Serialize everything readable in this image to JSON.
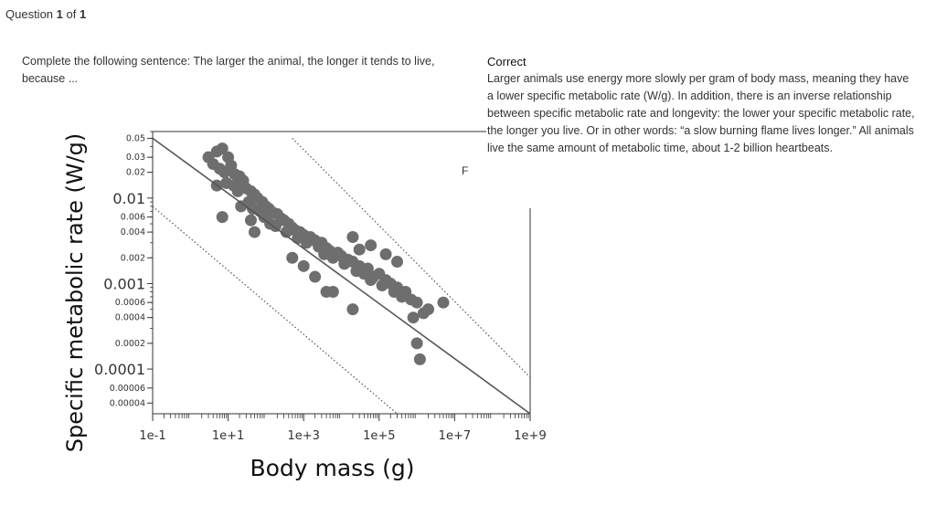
{
  "header": {
    "prefix": "Question",
    "current": "1",
    "sep": "of",
    "total": "1"
  },
  "question": {
    "prompt": "Complete the following sentence: The larger the animal, the longer it tends to live, because ..."
  },
  "feedback": {
    "status": "Correct",
    "text": "Larger animals use energy more slowly per gram of body mass, meaning they have a lower specific metabolic rate (W/g). In addition, there is an inverse relationship between specific metabolic rate and longevity: the lower your specific metabolic rate, the longer you live. Or in other words: “a slow burning flame lives longer.” All animals live the same amount of metabolic time, about 1-2 billion heartbeats."
  },
  "stray": "F",
  "chart_data": {
    "type": "scatter",
    "title": "",
    "xlabel": "Body mass (g)",
    "ylabel": "Specific metabolic rate (W/g)",
    "x_scale": "log",
    "y_scale": "log",
    "xlim": [
      0.1,
      1000000000
    ],
    "ylim": [
      3e-05,
      0.06
    ],
    "x_ticks": [
      {
        "value": 0.1,
        "label": "1e-1"
      },
      {
        "value": 10,
        "label": "1e+1"
      },
      {
        "value": 1000,
        "label": "1e+3"
      },
      {
        "value": 100000,
        "label": "1e+5"
      },
      {
        "value": 10000000,
        "label": "1e+7"
      },
      {
        "value": 1000000000,
        "label": "1e+9"
      }
    ],
    "y_ticks": [
      {
        "value": 0.05,
        "label": "0.05",
        "major": false
      },
      {
        "value": 0.03,
        "label": "0.03",
        "major": false
      },
      {
        "value": 0.02,
        "label": "0.02",
        "major": false
      },
      {
        "value": 0.01,
        "label": "0.01",
        "major": true
      },
      {
        "value": 0.006,
        "label": "0.006",
        "major": false
      },
      {
        "value": 0.004,
        "label": "0.004",
        "major": false
      },
      {
        "value": 0.002,
        "label": "0.002",
        "major": false
      },
      {
        "value": 0.001,
        "label": "0.001",
        "major": true
      },
      {
        "value": 0.0006,
        "label": "0.0006",
        "major": false
      },
      {
        "value": 0.0004,
        "label": "0.0004",
        "major": false
      },
      {
        "value": 0.0002,
        "label": "0.0002",
        "major": false
      },
      {
        "value": 0.0001,
        "label": "0.0001",
        "major": true
      },
      {
        "value": 6e-05,
        "label": "0.00006",
        "major": false
      },
      {
        "value": 4e-05,
        "label": "0.00004",
        "major": false
      }
    ],
    "trend_line": {
      "x": [
        0.1,
        1000000000
      ],
      "y": [
        0.05,
        3e-05
      ]
    },
    "upper_bound": {
      "x": [
        500,
        1000000000
      ],
      "y": [
        0.05,
        8e-05
      ]
    },
    "lower_bound": {
      "x": [
        0.1,
        300000
      ],
      "y": [
        0.008,
        3e-05
      ]
    },
    "point_color": "#6e6e6e",
    "line_color": "#555555",
    "points": [
      [
        3,
        0.03
      ],
      [
        5,
        0.035
      ],
      [
        7,
        0.038
      ],
      [
        10,
        0.03
      ],
      [
        4,
        0.025
      ],
      [
        6,
        0.022
      ],
      [
        8,
        0.02
      ],
      [
        12,
        0.024
      ],
      [
        15,
        0.019
      ],
      [
        20,
        0.018
      ],
      [
        9,
        0.015
      ],
      [
        14,
        0.014
      ],
      [
        25,
        0.016
      ],
      [
        30,
        0.013
      ],
      [
        18,
        0.012
      ],
      [
        40,
        0.012
      ],
      [
        50,
        0.011
      ],
      [
        60,
        0.01
      ],
      [
        35,
        0.009
      ],
      [
        80,
        0.009
      ],
      [
        22,
        0.008
      ],
      [
        45,
        0.0075
      ],
      [
        100,
        0.008
      ],
      [
        120,
        0.0075
      ],
      [
        70,
        0.007
      ],
      [
        150,
        0.0068
      ],
      [
        200,
        0.0065
      ],
      [
        90,
        0.006
      ],
      [
        250,
        0.0058
      ],
      [
        300,
        0.0055
      ],
      [
        130,
        0.005
      ],
      [
        400,
        0.005
      ],
      [
        180,
        0.0047
      ],
      [
        500,
        0.0045
      ],
      [
        600,
        0.0042
      ],
      [
        350,
        0.004
      ],
      [
        800,
        0.004
      ],
      [
        1000,
        0.0037
      ],
      [
        700,
        0.0034
      ],
      [
        1500,
        0.0035
      ],
      [
        2000,
        0.0032
      ],
      [
        1200,
        0.003
      ],
      [
        3000,
        0.003
      ],
      [
        2500,
        0.0027
      ],
      [
        4000,
        0.0026
      ],
      [
        5000,
        0.0024
      ],
      [
        3500,
        0.0022
      ],
      [
        8000,
        0.0023
      ],
      [
        10000,
        0.0021
      ],
      [
        6000,
        0.002
      ],
      [
        15000,
        0.0019
      ],
      [
        20000,
        0.0018
      ],
      [
        12000,
        0.0017
      ],
      [
        30000,
        0.0016
      ],
      [
        25000,
        0.0014
      ],
      [
        50000,
        0.0015
      ],
      [
        40000,
        0.0013
      ],
      [
        70000,
        0.0012
      ],
      [
        100000,
        0.0013
      ],
      [
        60000,
        0.0011
      ],
      [
        150000,
        0.0011
      ],
      [
        200000,
        0.001
      ],
      [
        120000,
        0.00095
      ],
      [
        300000,
        0.0009
      ],
      [
        250000,
        0.0008
      ],
      [
        500000,
        0.0008
      ],
      [
        400000,
        0.0007
      ],
      [
        700000,
        0.00065
      ],
      [
        1000000,
        0.0006
      ],
      [
        2000000,
        0.0005
      ],
      [
        1500000,
        0.00045
      ],
      [
        800000,
        0.0004
      ],
      [
        30000,
        0.0025
      ],
      [
        20000,
        0.0035
      ],
      [
        60000,
        0.0028
      ],
      [
        150000,
        0.0022
      ],
      [
        300000,
        0.0018
      ],
      [
        5000000,
        0.0006
      ],
      [
        1000000,
        0.0002
      ],
      [
        1200000,
        0.00013
      ],
      [
        7,
        0.006
      ],
      [
        4000,
        0.0008
      ],
      [
        6000,
        0.0008
      ],
      [
        20000,
        0.0005
      ],
      [
        500,
        0.002
      ],
      [
        1000,
        0.0016
      ],
      [
        2000,
        0.0012
      ],
      [
        50,
        0.004
      ],
      [
        40,
        0.0055
      ],
      [
        5,
        0.014
      ]
    ]
  }
}
